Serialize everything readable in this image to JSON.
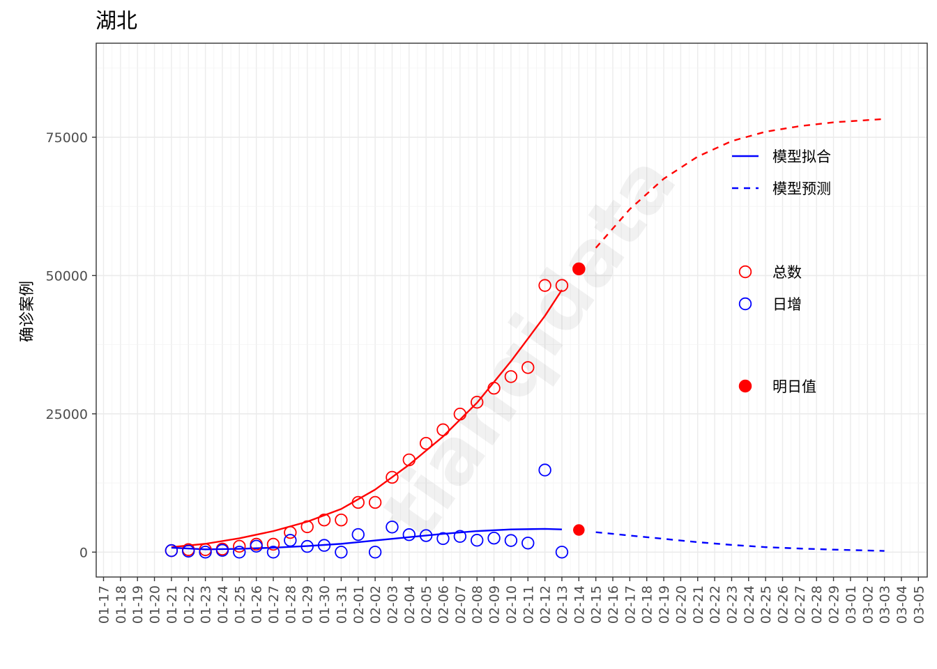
{
  "chart_data": {
    "type": "scatter",
    "title": "湖北",
    "xlabel": "",
    "ylabel": "确诊案例",
    "watermark": "tianqidata",
    "x_ticks": [
      "01-17",
      "01-18",
      "01-19",
      "01-20",
      "01-21",
      "01-22",
      "01-23",
      "01-24",
      "01-25",
      "01-26",
      "01-27",
      "01-28",
      "01-29",
      "01-30",
      "01-31",
      "02-01",
      "02-02",
      "02-03",
      "02-04",
      "02-05",
      "02-06",
      "02-07",
      "02-08",
      "02-09",
      "02-10",
      "02-11",
      "02-12",
      "02-13",
      "02-14",
      "02-15",
      "02-16",
      "02-17",
      "02-18",
      "02-19",
      "02-20",
      "02-21",
      "02-22",
      "02-23",
      "02-24",
      "02-25",
      "02-26",
      "02-27",
      "02-28",
      "02-29",
      "03-01",
      "03-02",
      "03-03",
      "03-04",
      "03-05"
    ],
    "x_range": [
      "01-17",
      "03-05"
    ],
    "y_ticks": [
      0,
      25000,
      50000,
      75000
    ],
    "ylim": [
      -4500,
      92000
    ],
    "grid": true,
    "legend_position": "right",
    "legend": {
      "lines": [
        {
          "label": "模型拟合",
          "color": "#0000ff",
          "style": "solid"
        },
        {
          "label": "模型预测",
          "color": "#0000ff",
          "style": "dashed"
        }
      ],
      "points": [
        {
          "label": "总数",
          "color": "#ff0000",
          "style": "open"
        },
        {
          "label": "日增",
          "color": "#0000ff",
          "style": "open"
        }
      ],
      "filled": [
        {
          "label": "明日值",
          "color": "#ff0000",
          "style": "filled"
        }
      ]
    },
    "series": [
      {
        "name": "总数",
        "kind": "points",
        "color": "#ff0000",
        "x": [
          "01-21",
          "01-22",
          "01-23",
          "01-24",
          "01-25",
          "01-26",
          "01-27",
          "01-28",
          "01-29",
          "01-30",
          "01-31",
          "02-01",
          "02-02",
          "02-03",
          "02-04",
          "02-05",
          "02-06",
          "02-07",
          "02-08",
          "02-09",
          "02-10",
          "02-11",
          "02-12",
          "02-13"
        ],
        "y": [
          270,
          444,
          444,
          549,
          1052,
          1423,
          1423,
          3554,
          4586,
          5806,
          5806,
          8986,
          8986,
          13522,
          16678,
          19665,
          22112,
          24953,
          27100,
          29631,
          31728,
          33366,
          48206,
          48206
        ]
      },
      {
        "name": "日增",
        "kind": "points",
        "color": "#0000ff",
        "x": [
          "01-21",
          "01-22",
          "01-23",
          "01-24",
          "01-25",
          "01-26",
          "01-27",
          "01-28",
          "01-29",
          "01-30",
          "01-31",
          "02-01",
          "02-02",
          "02-03",
          "02-04",
          "02-05",
          "02-06",
          "02-07",
          "02-08",
          "02-09",
          "02-10",
          "02-11",
          "02-12",
          "02-13"
        ],
        "y": [
          270,
          174,
          0,
          323,
          0,
          1068,
          0,
          2131,
          1032,
          1220,
          0,
          3180,
          0,
          4536,
          3156,
          2987,
          2447,
          2841,
          2147,
          2531,
          2097,
          1638,
          14840,
          0
        ]
      },
      {
        "name": "总数-模型拟合",
        "kind": "line",
        "style": "solid",
        "color": "#ff0000",
        "x": [
          "01-21",
          "01-23",
          "01-25",
          "01-27",
          "01-29",
          "01-31",
          "02-02",
          "02-04",
          "02-06",
          "02-08",
          "02-10",
          "02-12",
          "02-13"
        ],
        "y": [
          900,
          1500,
          2500,
          3800,
          5500,
          7800,
          11300,
          15800,
          20900,
          27000,
          34500,
          42700,
          47400
        ]
      },
      {
        "name": "总数-模型预测",
        "kind": "line",
        "style": "dashed",
        "color": "#ff0000",
        "x": [
          "02-15",
          "02-17",
          "02-19",
          "02-21",
          "02-23",
          "02-25",
          "02-27",
          "02-29",
          "03-02",
          "03-03"
        ],
        "y": [
          55000,
          62000,
          67500,
          71500,
          74300,
          76000,
          77000,
          77700,
          78100,
          78300
        ]
      },
      {
        "name": "日增-模型拟合",
        "kind": "line",
        "style": "solid",
        "color": "#0000ff",
        "x": [
          "01-21",
          "01-23",
          "01-25",
          "01-27",
          "01-29",
          "01-31",
          "02-02",
          "02-04",
          "02-06",
          "02-08",
          "02-10",
          "02-12",
          "02-13"
        ],
        "y": [
          800,
          500,
          600,
          800,
          1100,
          1500,
          2100,
          2700,
          3300,
          3800,
          4100,
          4200,
          4100
        ]
      },
      {
        "name": "日增-模型预测",
        "kind": "line",
        "style": "dashed",
        "color": "#0000ff",
        "x": [
          "02-15",
          "02-17",
          "02-19",
          "02-21",
          "02-23",
          "02-25",
          "02-27",
          "02-29",
          "03-02",
          "03-03"
        ],
        "y": [
          3600,
          3000,
          2400,
          1800,
          1300,
          900,
          650,
          450,
          300,
          220
        ]
      },
      {
        "name": "明日值",
        "kind": "filled",
        "color": "#ff0000",
        "x": [
          "02-14",
          "02-14"
        ],
        "y": [
          51200,
          4000
        ]
      }
    ]
  }
}
